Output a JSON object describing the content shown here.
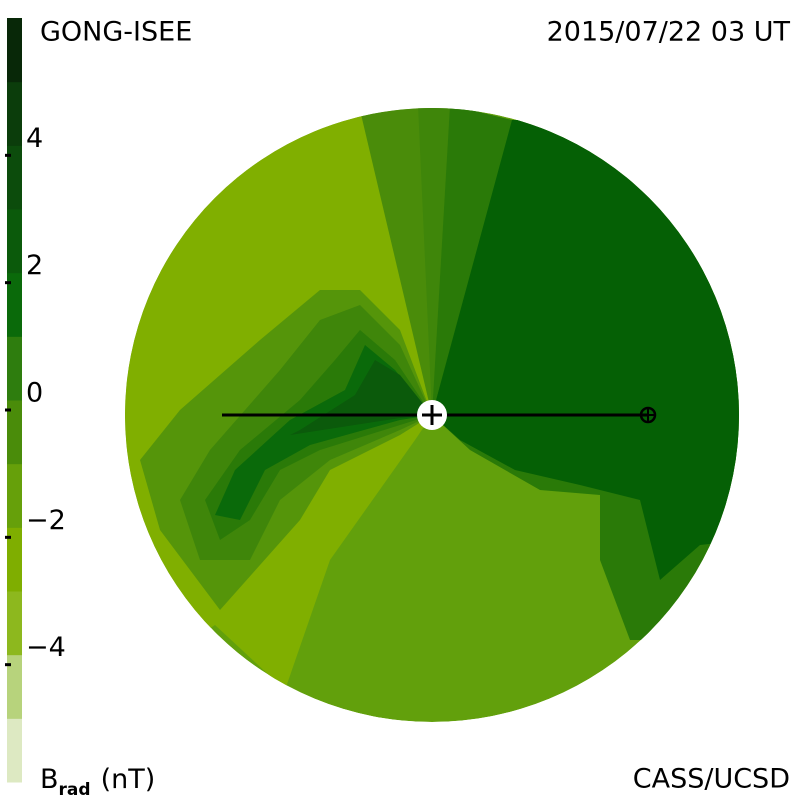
{
  "header": {
    "source": "GONG-ISEE",
    "time": "2015/07/22 03 UT",
    "credit": "CASS/UCSD"
  },
  "colorbar": {
    "label": {
      "symbol": "B",
      "subscript": "rad",
      "unit": "(nT)"
    },
    "range": [
      -6,
      6
    ],
    "ticks": [
      4,
      2,
      0,
      {
        "value": -2,
        "label": "−2"
      },
      {
        "value": -4,
        "label": "−4"
      }
    ],
    "colors": [
      "#dde9c2",
      "#b7d37c",
      "#8db81e",
      "#7fae00",
      "#66a00a",
      "#4a8c0a",
      "#2e7d0e",
      "#0a6a0a",
      "#0b5a0b",
      "#0c4c0c",
      "#0b3d0b",
      "#082808"
    ]
  }
}
